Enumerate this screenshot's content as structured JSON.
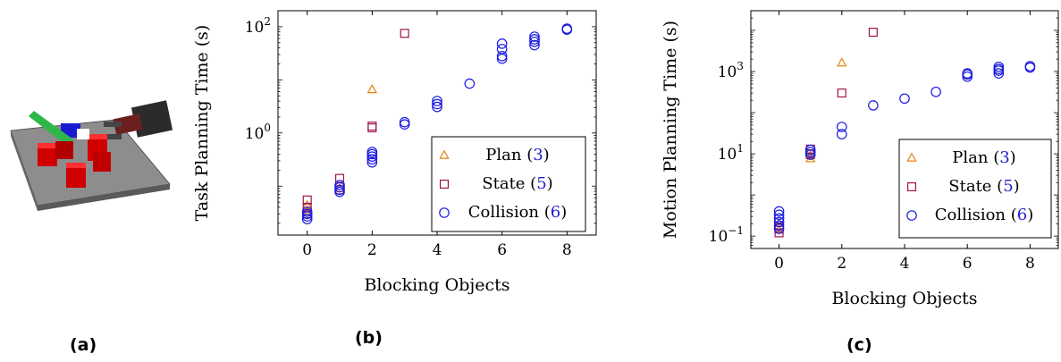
{
  "panels": {
    "a": {
      "label": "(a)"
    },
    "b": {
      "label": "(b)"
    },
    "c": {
      "label": "(c)"
    }
  },
  "colors": {
    "plan": "#e8820f",
    "state": "#a0144f",
    "collision": "#1a1ae0",
    "legend_number": "#1f1fd0"
  },
  "chart_data": [
    {
      "type": "scatter",
      "id": "b",
      "xlabel": "Blocking Objects",
      "ylabel": "Task Planning Time (s)",
      "xscale": "linear",
      "yscale": "log",
      "xlim": [
        -0.9,
        8.9
      ],
      "ylim": [
        0.012,
        200
      ],
      "xticks": [
        0,
        2,
        4,
        6,
        8
      ],
      "xtick_labels": [
        "0",
        "2",
        "4",
        "6",
        "8"
      ],
      "yticks": [
        1,
        100
      ],
      "ytick_labels": [
        "10^0",
        "10^2"
      ],
      "grid": false,
      "legend_position": "bottom-right",
      "series": [
        {
          "name": "Plan",
          "ref": "(3)",
          "marker": "triangle",
          "points": [
            [
              0,
              0.034
            ],
            [
              0,
              0.043
            ],
            [
              1,
              0.09
            ],
            [
              2,
              6.5
            ]
          ]
        },
        {
          "name": "State",
          "ref": "(5)",
          "marker": "square",
          "points": [
            [
              0,
              0.03
            ],
            [
              0,
              0.04
            ],
            [
              0,
              0.055
            ],
            [
              1,
              0.085
            ],
            [
              1,
              0.14
            ],
            [
              2,
              1.25
            ],
            [
              2,
              1.35
            ],
            [
              3,
              75
            ]
          ]
        },
        {
          "name": "Collision",
          "ref": "(6)",
          "marker": "circle",
          "points": [
            [
              0,
              0.024
            ],
            [
              0,
              0.027
            ],
            [
              0,
              0.03
            ],
            [
              0,
              0.033
            ],
            [
              1,
              0.078
            ],
            [
              1,
              0.085
            ],
            [
              1,
              0.095
            ],
            [
              1,
              0.105
            ],
            [
              2,
              0.28
            ],
            [
              2,
              0.32
            ],
            [
              2,
              0.36
            ],
            [
              2,
              0.4
            ],
            [
              2,
              0.44
            ],
            [
              3,
              1.45
            ],
            [
              3,
              1.6
            ],
            [
              4,
              3.1
            ],
            [
              4,
              3.5
            ],
            [
              4,
              4.0
            ],
            [
              5,
              8.5
            ],
            [
              6,
              25
            ],
            [
              6,
              28
            ],
            [
              6,
              38
            ],
            [
              6,
              48
            ],
            [
              7,
              45
            ],
            [
              7,
              52
            ],
            [
              7,
              58
            ],
            [
              7,
              65
            ],
            [
              8,
              88
            ],
            [
              8,
              92
            ]
          ]
        }
      ]
    },
    {
      "type": "scatter",
      "id": "c",
      "xlabel": "Blocking Objects",
      "ylabel": "Motion Planning Time (s)",
      "xscale": "linear",
      "yscale": "log",
      "xlim": [
        -0.9,
        8.9
      ],
      "ylim": [
        0.05,
        30000
      ],
      "xticks": [
        0,
        2,
        4,
        6,
        8
      ],
      "xtick_labels": [
        "0",
        "2",
        "4",
        "6",
        "8"
      ],
      "yticks": [
        0.1,
        10,
        1000
      ],
      "ytick_labels": [
        "10^-1",
        "10^1",
        "10^3"
      ],
      "grid": false,
      "legend_position": "bottom-right",
      "series": [
        {
          "name": "Plan",
          "ref": "(3)",
          "marker": "triangle",
          "points": [
            [
              0,
              0.14
            ],
            [
              0,
              0.2
            ],
            [
              1,
              7.5
            ],
            [
              1,
              9
            ],
            [
              2,
              1600
            ]
          ]
        },
        {
          "name": "State",
          "ref": "(5)",
          "marker": "square",
          "points": [
            [
              0,
              0.12
            ],
            [
              0,
              0.16
            ],
            [
              1,
              10
            ],
            [
              1,
              13
            ],
            [
              2,
              300
            ],
            [
              3,
              9000
            ]
          ]
        },
        {
          "name": "Collision",
          "ref": "(6)",
          "marker": "circle",
          "points": [
            [
              0,
              0.15
            ],
            [
              0,
              0.18
            ],
            [
              0,
              0.22
            ],
            [
              0,
              0.27
            ],
            [
              0,
              0.33
            ],
            [
              0,
              0.4
            ],
            [
              1,
              9.5
            ],
            [
              1,
              11
            ],
            [
              1,
              12.5
            ],
            [
              2,
              30
            ],
            [
              2,
              45
            ],
            [
              3,
              150
            ],
            [
              4,
              220
            ],
            [
              5,
              320
            ],
            [
              6,
              750
            ],
            [
              6,
              850
            ],
            [
              6,
              900
            ],
            [
              7,
              900
            ],
            [
              7,
              1050
            ],
            [
              7,
              1150
            ],
            [
              7,
              1300
            ],
            [
              8,
              1250
            ],
            [
              8,
              1350
            ]
          ]
        }
      ]
    }
  ]
}
